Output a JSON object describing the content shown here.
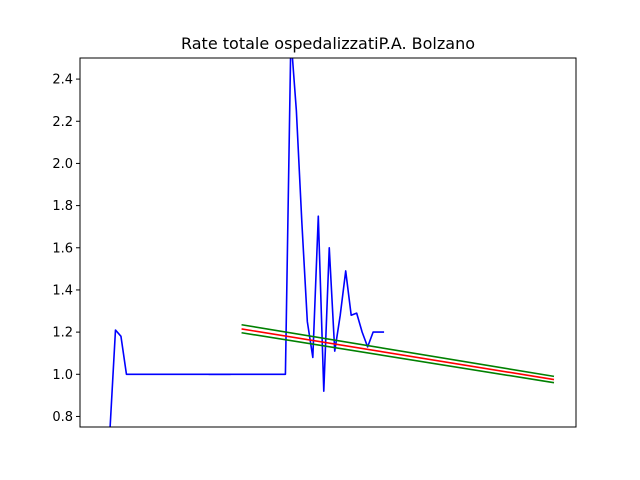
{
  "chart_data": {
    "type": "line",
    "title": "Rate totale ospedalizzatiP.A. Bolzano",
    "xlabel": "",
    "ylabel": "",
    "ylim": [
      0.75,
      2.5
    ],
    "xlim": [
      0,
      85
    ],
    "grid": false,
    "yticks": [
      "0.8",
      "1.0",
      "1.2",
      "1.4",
      "1.6",
      "1.8",
      "2.0",
      "2.2",
      "2.4"
    ],
    "series": [
      {
        "color": "#0000ff",
        "x": [
          5,
          6,
          7,
          8,
          9,
          10,
          11,
          12,
          13,
          14,
          15,
          16,
          17,
          18,
          19,
          20,
          21,
          22,
          23,
          24,
          25,
          26,
          27
        ],
        "y": [
          0.74,
          1.21,
          1.18,
          1.0,
          1.0,
          1.0,
          1.0,
          1.0,
          1.0,
          1.0,
          1.0,
          1.0,
          1.0,
          1.0,
          1.0,
          1.0,
          1.0,
          1.0,
          1.0,
          1.0,
          1.0,
          1.0,
          1.0
        ]
      },
      {
        "color": "#0000ff",
        "x": [
          23,
          24,
          25,
          26,
          27,
          28,
          29,
          30,
          31,
          32,
          33,
          34,
          35,
          36,
          37,
          38,
          39,
          40,
          41,
          42,
          43,
          44,
          45,
          46,
          47,
          48,
          49,
          50,
          51,
          52,
          53,
          54,
          55
        ],
        "y": [
          1.0,
          1.0,
          1.0,
          1.0,
          1.0,
          1.0,
          1.0,
          1.0,
          1.0,
          1.0,
          1.0,
          1.0,
          1.0,
          1.0,
          1.0,
          2.6,
          2.25,
          1.72,
          1.25,
          1.08,
          1.75,
          0.92,
          1.6,
          1.11,
          1.28,
          1.49,
          1.28,
          1.29,
          1.2,
          1.13,
          1.2,
          1.2,
          1.2
        ]
      },
      {
        "color": "#008000",
        "x": [
          29,
          86
        ],
        "y": [
          1.235,
          0.99
        ]
      },
      {
        "color": "#ff0000",
        "x": [
          29,
          86
        ],
        "y": [
          1.215,
          0.975
        ]
      },
      {
        "color": "#008000",
        "x": [
          29,
          86
        ],
        "y": [
          1.197,
          0.96
        ]
      }
    ]
  }
}
